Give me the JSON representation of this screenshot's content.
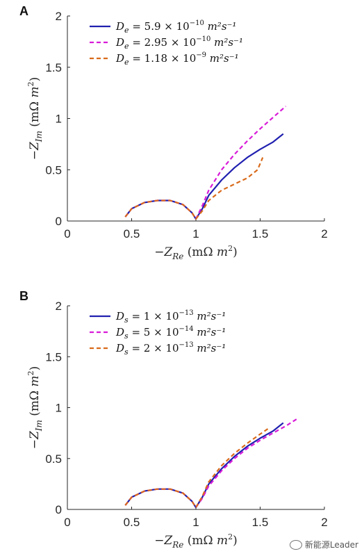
{
  "chart_data": [
    {
      "type": "line",
      "panel": "A",
      "xlabel": "−Z_Re (mΩ m²)",
      "ylabel": "−Z_Im (mΩ m²)",
      "xlim": [
        0,
        2
      ],
      "ylim": [
        0,
        2
      ],
      "xticks": [
        "0",
        "0.5",
        "1",
        "1.5",
        "2"
      ],
      "yticks": [
        "0",
        "0.5",
        "1",
        "1.5",
        "2"
      ],
      "legend_position": "top-left",
      "series": [
        {
          "name": "D_e = 5.9 × 10⁻¹⁰ m²s⁻¹",
          "color": "#2020b0",
          "dash": "solid",
          "points": [
            [
              0.45,
              0.04
            ],
            [
              0.5,
              0.12
            ],
            [
              0.6,
              0.18
            ],
            [
              0.7,
              0.2
            ],
            [
              0.8,
              0.2
            ],
            [
              0.9,
              0.16
            ],
            [
              0.97,
              0.08
            ],
            [
              1.0,
              0.02
            ],
            [
              1.05,
              0.12
            ],
            [
              1.1,
              0.25
            ],
            [
              1.2,
              0.4
            ],
            [
              1.3,
              0.52
            ],
            [
              1.4,
              0.62
            ],
            [
              1.5,
              0.7
            ],
            [
              1.6,
              0.77
            ],
            [
              1.68,
              0.85
            ]
          ]
        },
        {
          "name": "D_e = 2.95 × 10⁻¹⁰ m²s⁻¹",
          "color": "#d81bd8",
          "dash": "dashed",
          "points": [
            [
              0.45,
              0.04
            ],
            [
              0.5,
              0.12
            ],
            [
              0.6,
              0.18
            ],
            [
              0.7,
              0.2
            ],
            [
              0.8,
              0.2
            ],
            [
              0.9,
              0.16
            ],
            [
              0.97,
              0.08
            ],
            [
              1.0,
              0.02
            ],
            [
              1.05,
              0.15
            ],
            [
              1.1,
              0.3
            ],
            [
              1.2,
              0.5
            ],
            [
              1.3,
              0.65
            ],
            [
              1.4,
              0.78
            ],
            [
              1.5,
              0.9
            ],
            [
              1.6,
              1.01
            ],
            [
              1.7,
              1.12
            ]
          ]
        },
        {
          "name": "D_e = 1.18 × 10⁻⁹ m²s⁻¹",
          "color": "#d96a1a",
          "dash": "dashed",
          "points": [
            [
              0.45,
              0.04
            ],
            [
              0.5,
              0.12
            ],
            [
              0.6,
              0.18
            ],
            [
              0.7,
              0.2
            ],
            [
              0.8,
              0.2
            ],
            [
              0.9,
              0.16
            ],
            [
              0.97,
              0.08
            ],
            [
              1.0,
              0.02
            ],
            [
              1.05,
              0.1
            ],
            [
              1.1,
              0.2
            ],
            [
              1.2,
              0.3
            ],
            [
              1.3,
              0.36
            ],
            [
              1.4,
              0.42
            ],
            [
              1.48,
              0.5
            ],
            [
              1.52,
              0.62
            ]
          ]
        }
      ]
    },
    {
      "type": "line",
      "panel": "B",
      "xlabel": "−Z_Re (mΩ m²)",
      "ylabel": "−Z_Im (mΩ m²)",
      "xlim": [
        0,
        2
      ],
      "ylim": [
        0,
        2
      ],
      "xticks": [
        "0",
        "0.5",
        "1",
        "1.5",
        "2"
      ],
      "yticks": [
        "0",
        "0.5",
        "1",
        "1.5",
        "2"
      ],
      "legend_position": "top-left",
      "series": [
        {
          "name": "D_s = 1 × 10⁻¹³ m²s⁻¹",
          "color": "#2020b0",
          "dash": "solid",
          "points": [
            [
              0.45,
              0.04
            ],
            [
              0.5,
              0.12
            ],
            [
              0.6,
              0.18
            ],
            [
              0.7,
              0.2
            ],
            [
              0.8,
              0.2
            ],
            [
              0.9,
              0.16
            ],
            [
              0.97,
              0.08
            ],
            [
              1.0,
              0.02
            ],
            [
              1.05,
              0.12
            ],
            [
              1.1,
              0.25
            ],
            [
              1.2,
              0.4
            ],
            [
              1.3,
              0.52
            ],
            [
              1.4,
              0.62
            ],
            [
              1.5,
              0.7
            ],
            [
              1.6,
              0.77
            ],
            [
              1.68,
              0.85
            ]
          ]
        },
        {
          "name": "D_s = 5 × 10⁻¹⁴ m²s⁻¹",
          "color": "#d81bd8",
          "dash": "dashed",
          "points": [
            [
              0.45,
              0.04
            ],
            [
              0.5,
              0.12
            ],
            [
              0.6,
              0.18
            ],
            [
              0.7,
              0.2
            ],
            [
              0.8,
              0.2
            ],
            [
              0.9,
              0.16
            ],
            [
              0.97,
              0.08
            ],
            [
              1.0,
              0.02
            ],
            [
              1.05,
              0.11
            ],
            [
              1.1,
              0.23
            ],
            [
              1.2,
              0.38
            ],
            [
              1.3,
              0.5
            ],
            [
              1.4,
              0.6
            ],
            [
              1.5,
              0.68
            ],
            [
              1.6,
              0.75
            ],
            [
              1.7,
              0.82
            ],
            [
              1.8,
              0.9
            ]
          ]
        },
        {
          "name": "D_s = 2 × 10⁻¹³ m²s⁻¹",
          "color": "#d96a1a",
          "dash": "dashed",
          "points": [
            [
              0.45,
              0.04
            ],
            [
              0.5,
              0.12
            ],
            [
              0.6,
              0.18
            ],
            [
              0.7,
              0.2
            ],
            [
              0.8,
              0.2
            ],
            [
              0.9,
              0.16
            ],
            [
              0.97,
              0.08
            ],
            [
              1.0,
              0.02
            ],
            [
              1.05,
              0.13
            ],
            [
              1.1,
              0.27
            ],
            [
              1.2,
              0.43
            ],
            [
              1.3,
              0.55
            ],
            [
              1.4,
              0.65
            ],
            [
              1.5,
              0.74
            ],
            [
              1.57,
              0.8
            ]
          ]
        }
      ]
    }
  ],
  "legends": [
    [
      {
        "sym": "D",
        "sub": "e",
        "coef": "5.9 × 10",
        "exp": "−10",
        "unit": "m²s⁻¹"
      },
      {
        "sym": "D",
        "sub": "e",
        "coef": "2.95 × 10",
        "exp": "−10",
        "unit": "m²s⁻¹"
      },
      {
        "sym": "D",
        "sub": "e",
        "coef": "1.18 × 10",
        "exp": "−9",
        "unit": "m²s⁻¹"
      }
    ],
    [
      {
        "sym": "D",
        "sub": "s",
        "coef": "1 × 10",
        "exp": "−13",
        "unit": "m²s⁻¹"
      },
      {
        "sym": "D",
        "sub": "s",
        "coef": "5 × 10",
        "exp": "−14",
        "unit": "m²s⁻¹"
      },
      {
        "sym": "D",
        "sub": "s",
        "coef": "2 × 10",
        "exp": "−13",
        "unit": "m²s⁻¹"
      }
    ]
  ],
  "panel_labels": [
    "A",
    "B"
  ],
  "axis_text": {
    "x_main": "−Z",
    "x_sub": "Re",
    "x_unit": " (mΩ ",
    "y_main": "−Z",
    "y_sub": "Im",
    "y_unit": " (mΩ ",
    "unit_m": "m",
    "unit_sup": "2",
    "unit_close": ")"
  },
  "watermark": "新能源Leader"
}
